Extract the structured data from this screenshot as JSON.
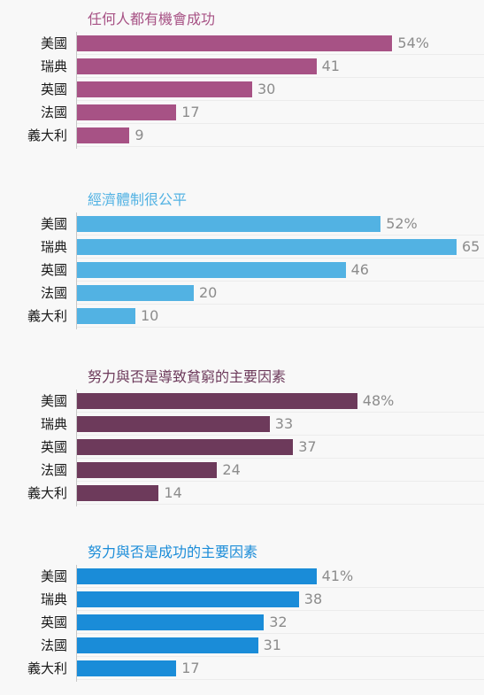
{
  "chart_data": [
    {
      "type": "bar",
      "orientation": "horizontal",
      "title": "任何人都有機會成功",
      "color": "#a75285",
      "categories": [
        "美國",
        "瑞典",
        "英國",
        "法國",
        "義大利"
      ],
      "values": [
        54,
        41,
        30,
        17,
        9
      ],
      "value_labels": [
        "54%",
        "41",
        "30",
        "17",
        "9"
      ],
      "xlim": [
        0,
        67
      ]
    },
    {
      "type": "bar",
      "orientation": "horizontal",
      "title": "經濟體制很公平",
      "color": "#52b2e3",
      "categories": [
        "美國",
        "瑞典",
        "英國",
        "法國",
        "義大利"
      ],
      "values": [
        52,
        65,
        46,
        20,
        10
      ],
      "value_labels": [
        "52%",
        "65",
        "46",
        "20",
        "10"
      ],
      "xlim": [
        0,
        67
      ]
    },
    {
      "type": "bar",
      "orientation": "horizontal",
      "title": "努力與否是導致貧窮的主要因素",
      "color": "#6d3a5b",
      "categories": [
        "美國",
        "瑞典",
        "英國",
        "法國",
        "義大利"
      ],
      "values": [
        48,
        33,
        37,
        24,
        14
      ],
      "value_labels": [
        "48%",
        "33",
        "37",
        "24",
        "14"
      ],
      "xlim": [
        0,
        67
      ]
    },
    {
      "type": "bar",
      "orientation": "horizontal",
      "title": "努力與否是成功的主要因素",
      "color": "#1a8cd8",
      "categories": [
        "美國",
        "瑞典",
        "英國",
        "法國",
        "義大利"
      ],
      "values": [
        41,
        38,
        32,
        31,
        17
      ],
      "value_labels": [
        "41%",
        "38",
        "32",
        "31",
        "17"
      ],
      "xlim": [
        0,
        67
      ]
    }
  ]
}
